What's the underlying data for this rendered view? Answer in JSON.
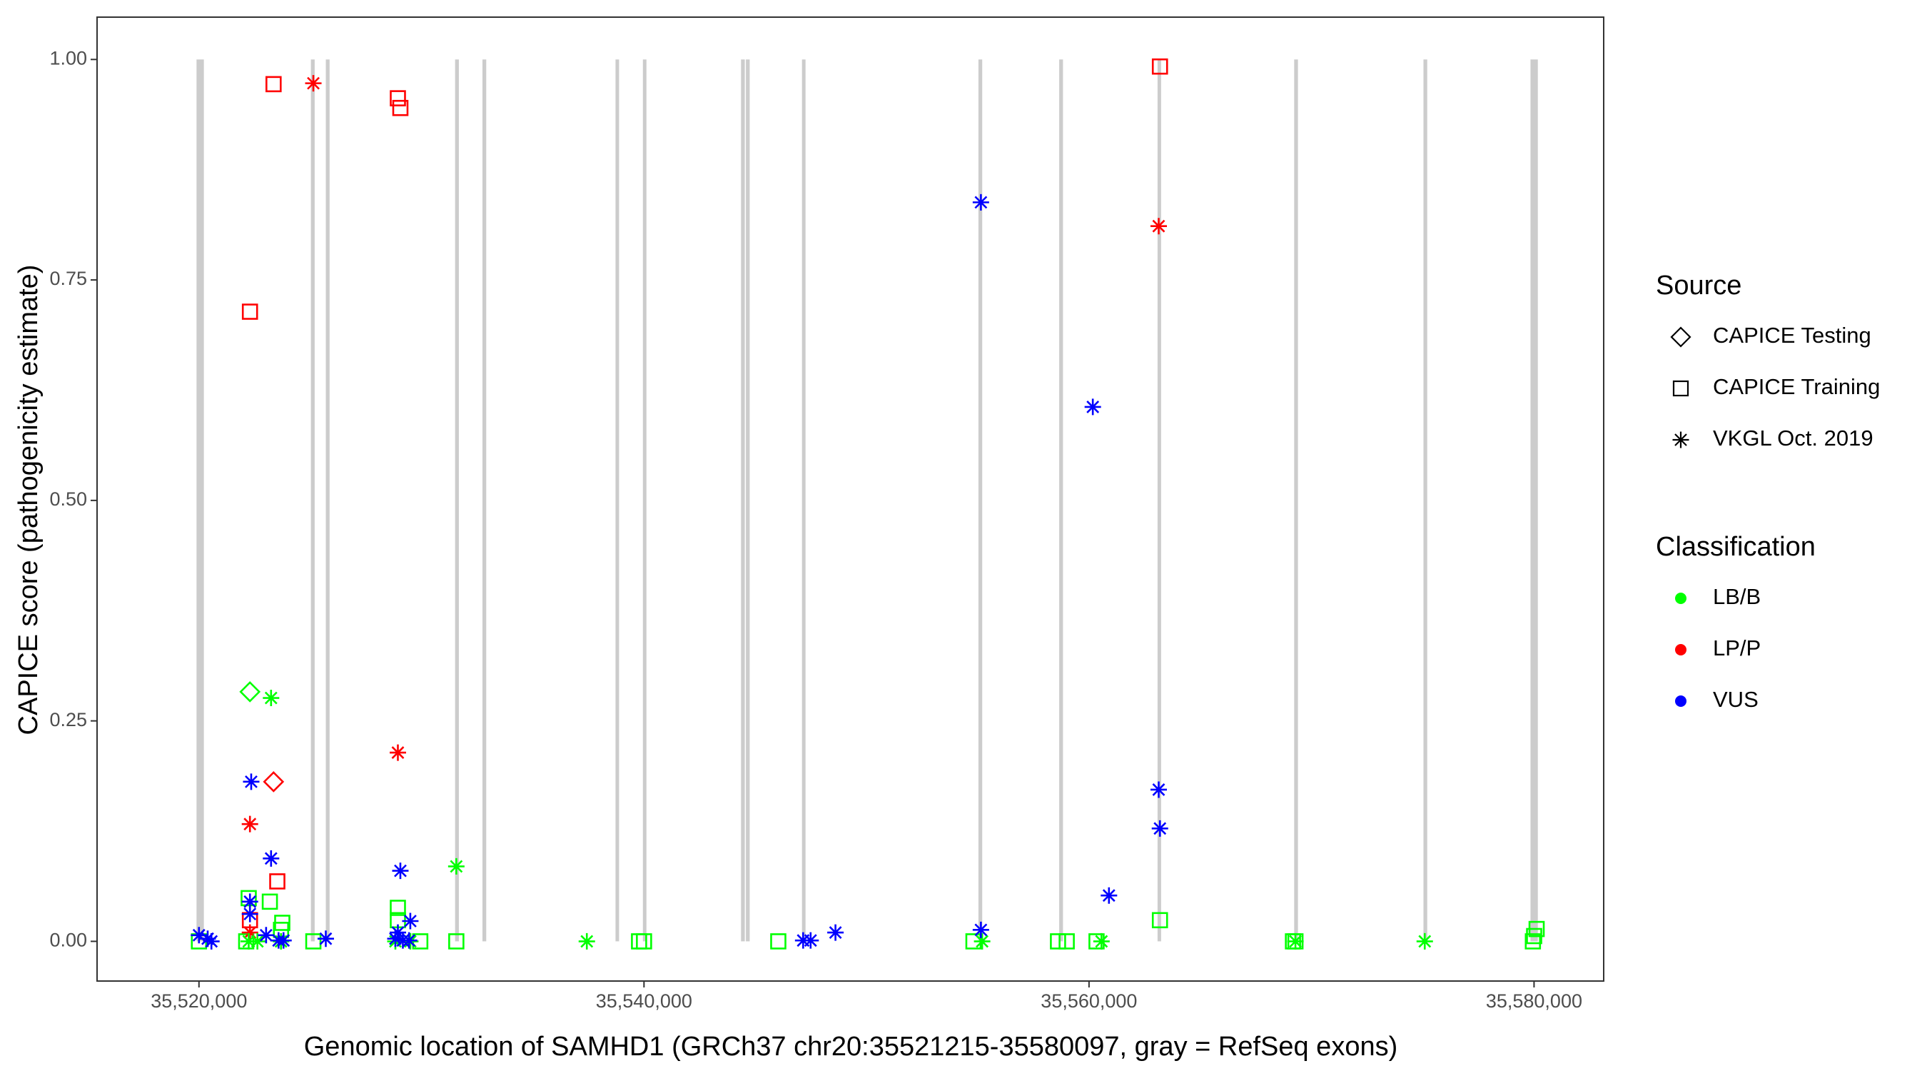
{
  "chart_data": {
    "type": "scatter",
    "x_label": "Genomic location of SAMHD1 (GRCh37 chr20:35521215-35580097, gray = RefSeq exons)",
    "y_label": "CAPICE score (pathogenicity estimate)",
    "xlim": [
      35515420,
      35583130
    ],
    "ylim": [
      -0.045,
      1.048
    ],
    "xticks": [
      {
        "value": 35520000,
        "label": "35,520,000"
      },
      {
        "value": 35540000,
        "label": "35,540,000"
      },
      {
        "value": 35560000,
        "label": "35,560,000"
      },
      {
        "value": 35580000,
        "label": "35,580,000"
      }
    ],
    "yticks": [
      {
        "value": 0,
        "label": "0.00"
      },
      {
        "value": 0.25,
        "label": "0.25"
      },
      {
        "value": 0.5,
        "label": "0.50"
      },
      {
        "value": 0.75,
        "label": "0.75"
      },
      {
        "value": 1,
        "label": "1.00"
      }
    ],
    "grid": false,
    "exon_color": "#cccccc",
    "exons": [
      [
        35519890,
        35520220
      ],
      [
        35525030,
        35525200
      ],
      [
        35525700,
        35525870
      ],
      [
        35531510,
        35531680
      ],
      [
        35532740,
        35532910
      ],
      [
        35538720,
        35538880
      ],
      [
        35539950,
        35540110
      ],
      [
        35544360,
        35544530
      ],
      [
        35544580,
        35544750
      ],
      [
        35547100,
        35547260
      ],
      [
        35555030,
        35555200
      ],
      [
        35558660,
        35558830
      ],
      [
        35563080,
        35563240
      ],
      [
        35569220,
        35569390
      ],
      [
        35575030,
        35575200
      ],
      [
        35579840,
        35580170
      ]
    ],
    "legends": [
      {
        "title": "Source",
        "entries": [
          {
            "label": "CAPICE Testing",
            "shape": "diamond"
          },
          {
            "label": "CAPICE Training",
            "shape": "square"
          },
          {
            "label": "VKGL Oct. 2019",
            "shape": "asterisk"
          }
        ]
      },
      {
        "title": "Classification",
        "entries": [
          {
            "label": "LB/B",
            "color": "#00ff00"
          },
          {
            "label": "LP/P",
            "color": "#ff0000"
          },
          {
            "label": "VUS",
            "color": "#0000ff"
          }
        ]
      }
    ],
    "series": [
      {
        "shape": "square",
        "color": "#00ff00",
        "x": [
          35522235,
          35523185,
          35523743,
          35523687,
          35528939,
          35528939,
          35563187,
          35580116,
          35580004,
          35579948,
          35520000,
          35522123,
          35525140,
          35529945,
          35531565,
          35539778,
          35540001,
          35546035,
          35554807,
          35558606,
          35558997,
          35560338,
          35569166,
          35569277
        ],
        "values": [
          0.049,
          0.045,
          0.021,
          0.013,
          0.038,
          0.024,
          0.024,
          0.014,
          0.006,
          0,
          0,
          0,
          0,
          0,
          0,
          0,
          0,
          0,
          0,
          0,
          0,
          0,
          0,
          0
        ]
      },
      {
        "shape": "square",
        "color": "#ff0000",
        "x": [
          35523352,
          35528939,
          35529051,
          35563187,
          35522291,
          35523520,
          35522291
        ],
        "values": [
          0.972,
          0.956,
          0.945,
          0.992,
          0.714,
          0.068,
          0.024
        ]
      },
      {
        "shape": "diamond",
        "color": "#00ff00",
        "x": [
          35522291
        ],
        "values": [
          0.283
        ]
      },
      {
        "shape": "diamond",
        "color": "#ff0000",
        "x": [
          35523352
        ],
        "values": [
          0.181
        ]
      },
      {
        "shape": "asterisk",
        "color": "#ff0000",
        "x": [
          35525140,
          35563131,
          35528939,
          35522291,
          35522291
        ],
        "values": [
          0.973,
          0.811,
          0.214,
          0.133,
          0.01
        ]
      },
      {
        "shape": "asterisk",
        "color": "#00ff00",
        "x": [
          35523240,
          35531565,
          35537431,
          35575088,
          35569277,
          35560561,
          35555197,
          35522235,
          35522626,
          35523687,
          35528827,
          35529498
        ],
        "values": [
          0.276,
          0.085,
          0,
          0,
          0,
          0,
          0,
          0,
          0,
          0,
          0,
          0
        ]
      },
      {
        "shape": "asterisk",
        "color": "#0000ff",
        "x": [
          35555141,
          35560170,
          35563131,
          35563187,
          35560896,
          35555141,
          35522347,
          35523240,
          35522291,
          35522291,
          35529051,
          35529498,
          35528939,
          35528827,
          35529163,
          35529442,
          35525699,
          35520000,
          35520391,
          35520559,
          35523017,
          35523576,
          35523799,
          35547153,
          35547488,
          35548605
        ],
        "values": [
          0.838,
          0.606,
          0.172,
          0.128,
          0.052,
          0.013,
          0.181,
          0.094,
          0.045,
          0.031,
          0.08,
          0.023,
          0.01,
          0.003,
          0.001,
          0.001,
          0.003,
          0.007,
          0.003,
          0,
          0.007,
          0.001,
          0.001,
          0.001,
          0.001,
          0.01
        ]
      }
    ]
  }
}
